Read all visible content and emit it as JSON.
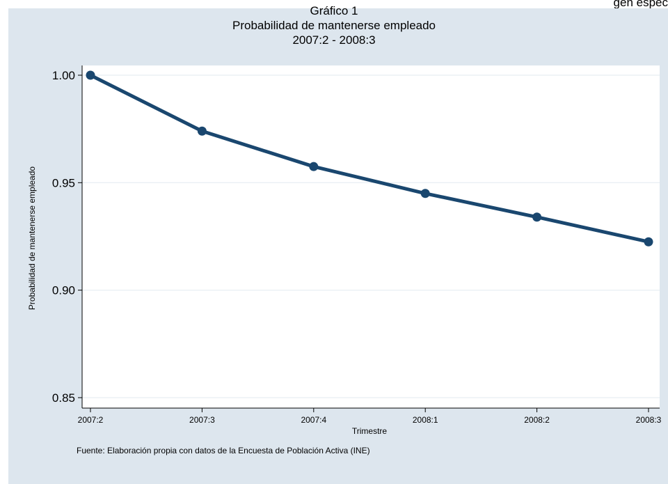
{
  "header_fragment": "gen espec",
  "chart_data": {
    "type": "line",
    "title": "Gráfico 1",
    "subtitle": "Probabilidad de mantenerse empleado",
    "period": "2007:2 - 2008:3",
    "xlabel": "Trimestre",
    "ylabel": "Probabilidad de mantenerse empleado",
    "categories": [
      "2007:2",
      "2007:3",
      "2007:4",
      "2008:1",
      "2008:2",
      "2008:3"
    ],
    "values": [
      1.0,
      0.974,
      0.9575,
      0.945,
      0.934,
      0.9225
    ],
    "ylim": [
      0.85,
      1.0
    ],
    "yticks": [
      0.85,
      0.9,
      0.95,
      1.0
    ],
    "ytick_labels": [
      "0.85",
      "0.90",
      "0.95",
      "1.00"
    ],
    "grid": true,
    "line_color": "#1a476f",
    "plot_background": "#ffffff",
    "panel_background": "#dde6ee"
  },
  "source_note": "Fuente: Elaboración propia con datos de la Encuesta de Población Activa (INE)"
}
